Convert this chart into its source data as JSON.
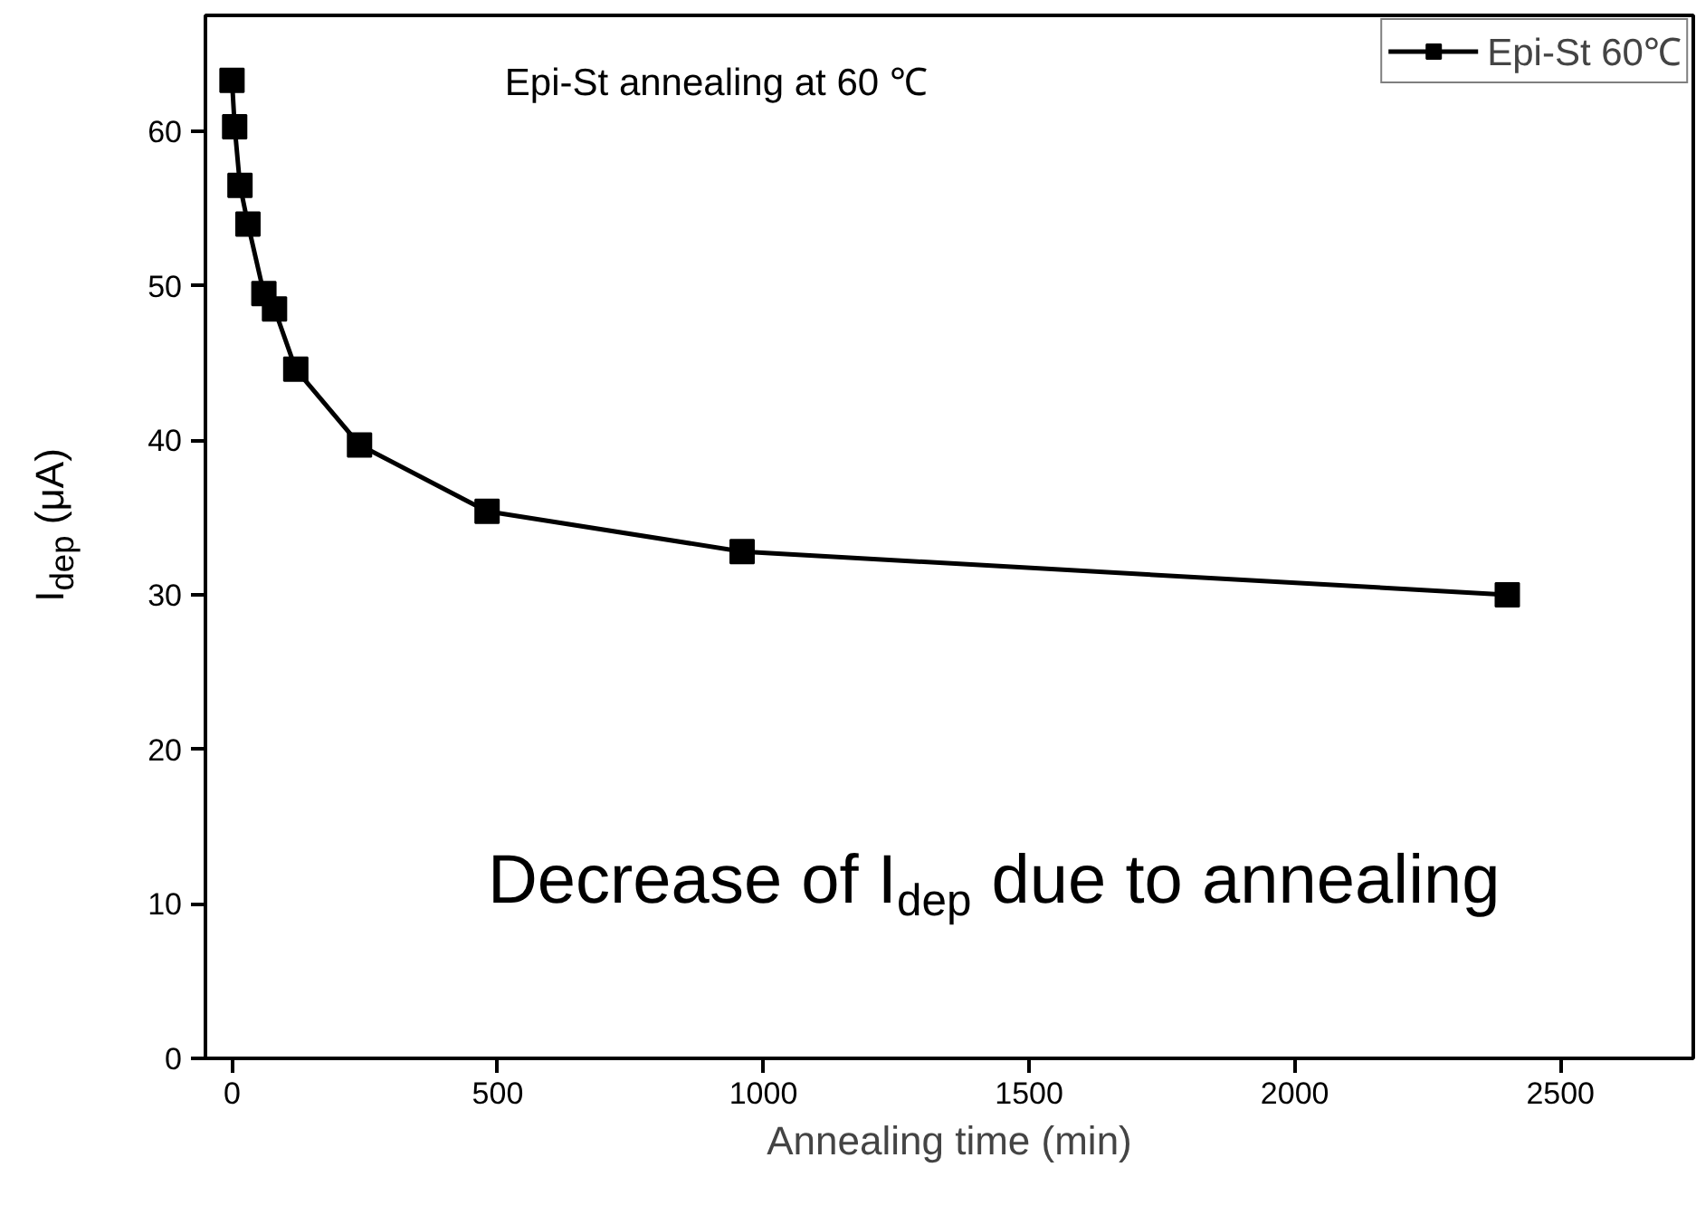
{
  "chart_data": {
    "type": "line",
    "title": "Epi-St annealing at 60 ℃",
    "xlabel": "Annealing time (min)",
    "ylabel": "I$_{dep}$ (μA)",
    "x": [
      0,
      5,
      15,
      30,
      60,
      80,
      120,
      240,
      480,
      960,
      2400
    ],
    "series": [
      {
        "name": "Epi-St 60℃",
        "color": "#000000",
        "values": [
          63.3,
          60.3,
          56.5,
          54.0,
          49.5,
          48.5,
          44.6,
          39.7,
          35.4,
          32.8,
          30.0
        ]
      }
    ],
    "annotations": [
      "Decrease of I$_{dep}$ due to annealing"
    ],
    "xlim": [
      -50,
      2750
    ],
    "ylim": [
      0,
      67.5
    ],
    "xticks": [
      0,
      500,
      1000,
      1500,
      2000,
      2500
    ],
    "yticks": [
      0,
      10,
      20,
      30,
      40,
      50,
      60
    ],
    "marker": "square",
    "line_style": "solid",
    "legend": "top right",
    "grid": false
  }
}
